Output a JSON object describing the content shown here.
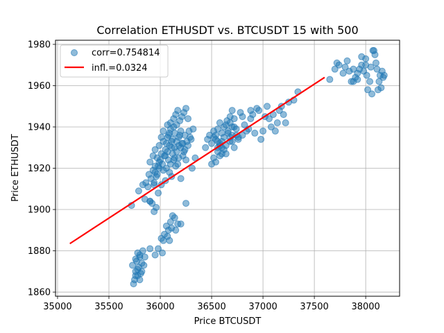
{
  "chart_data": {
    "type": "scatter",
    "title": "Correlation ETHUSDT vs. BTCUSDT 15 with 500",
    "xlabel": "Price BTCUSDT",
    "ylabel": "Price ETHUSDT",
    "xlim": [
      34980,
      38330
    ],
    "ylim": [
      1858,
      1982
    ],
    "xticks": [
      35000,
      35500,
      36000,
      36500,
      37000,
      37500,
      38000
    ],
    "yticks": [
      1860,
      1880,
      1900,
      1920,
      1940,
      1960,
      1980
    ],
    "grid": true,
    "legend_position": "top-left",
    "colors": {
      "points": "#1f77b4",
      "fit_line": "#ff0000"
    },
    "series": [
      {
        "name": "corr=0.754814",
        "kind": "scatter",
        "points": [
          [
            35720,
            1902
          ],
          [
            35790,
            1909
          ],
          [
            35830,
            1912
          ],
          [
            35850,
            1905
          ],
          [
            35880,
            1911
          ],
          [
            35900,
            1904
          ],
          [
            35920,
            1903
          ],
          [
            35940,
            1913
          ],
          [
            35960,
            1901
          ],
          [
            35980,
            1908
          ],
          [
            35860,
            1913
          ],
          [
            35890,
            1917
          ],
          [
            35910,
            1915
          ],
          [
            35930,
            1919
          ],
          [
            35950,
            1921
          ],
          [
            35970,
            1917
          ],
          [
            35990,
            1923
          ],
          [
            36010,
            1912
          ],
          [
            36030,
            1919
          ],
          [
            36050,
            1914
          ],
          [
            35900,
            1923
          ],
          [
            35930,
            1926
          ],
          [
            35950,
            1929
          ],
          [
            35970,
            1925
          ],
          [
            35990,
            1931
          ],
          [
            36010,
            1927
          ],
          [
            36030,
            1933
          ],
          [
            36050,
            1929
          ],
          [
            36070,
            1935
          ],
          [
            36090,
            1931
          ],
          [
            35950,
            1918
          ],
          [
            35980,
            1921
          ],
          [
            36000,
            1924
          ],
          [
            36020,
            1922
          ],
          [
            36040,
            1926
          ],
          [
            36060,
            1920
          ],
          [
            36080,
            1924
          ],
          [
            36100,
            1922
          ],
          [
            36120,
            1927
          ],
          [
            36140,
            1925
          ],
          [
            36060,
            1932
          ],
          [
            36080,
            1936
          ],
          [
            36100,
            1939
          ],
          [
            36120,
            1934
          ],
          [
            36140,
            1937
          ],
          [
            36160,
            1941
          ],
          [
            36180,
            1935
          ],
          [
            36200,
            1938
          ],
          [
            36220,
            1932
          ],
          [
            36240,
            1936
          ],
          [
            36100,
            1942
          ],
          [
            36130,
            1944
          ],
          [
            36150,
            1946
          ],
          [
            36170,
            1948
          ],
          [
            36190,
            1943
          ],
          [
            36210,
            1945
          ],
          [
            36230,
            1947
          ],
          [
            36250,
            1949
          ],
          [
            36270,
            1944
          ],
          [
            36160,
            1928
          ],
          [
            36180,
            1925
          ],
          [
            36200,
            1930
          ],
          [
            36220,
            1926
          ],
          [
            36240,
            1929
          ],
          [
            36260,
            1933
          ],
          [
            36280,
            1938
          ],
          [
            36300,
            1934
          ],
          [
            36320,
            1939
          ],
          [
            36340,
            1925
          ],
          [
            36200,
            1915
          ],
          [
            36140,
            1930
          ],
          [
            36160,
            1933
          ],
          [
            36180,
            1931
          ],
          [
            36050,
            1926
          ],
          [
            36070,
            1928
          ],
          [
            36110,
            1930
          ],
          [
            36130,
            1924
          ],
          [
            36150,
            1921
          ],
          [
            36010,
            1935
          ],
          [
            35990,
            1920
          ],
          [
            35960,
            1916
          ],
          [
            35940,
            1912
          ],
          [
            36030,
            1938
          ],
          [
            36070,
            1941
          ],
          [
            36090,
            1937
          ],
          [
            36110,
            1933
          ],
          [
            36130,
            1940
          ],
          [
            36190,
            1936
          ],
          [
            36210,
            1932
          ],
          [
            36230,
            1928
          ],
          [
            36250,
            1924
          ],
          [
            36270,
            1931
          ],
          [
            36290,
            1935
          ],
          [
            36310,
            1920
          ],
          [
            36090,
            1918
          ],
          [
            36110,
            1916
          ],
          [
            36170,
            1922
          ],
          [
            36250,
            1903
          ],
          [
            35900,
            1904
          ],
          [
            35940,
            1899
          ],
          [
            35730,
            1873
          ],
          [
            35750,
            1866
          ],
          [
            35760,
            1870
          ],
          [
            35770,
            1875
          ],
          [
            35780,
            1868
          ],
          [
            35790,
            1872
          ],
          [
            35800,
            1877
          ],
          [
            35810,
            1869
          ],
          [
            35820,
            1874
          ],
          [
            35830,
            1880
          ],
          [
            35740,
            1864
          ],
          [
            35760,
            1868
          ],
          [
            35780,
            1871
          ],
          [
            35800,
            1866
          ],
          [
            35820,
            1870
          ],
          [
            35840,
            1873
          ],
          [
            35850,
            1877
          ],
          [
            35760,
            1876
          ],
          [
            35780,
            1879
          ],
          [
            35800,
            1878
          ],
          [
            35900,
            1881
          ],
          [
            35950,
            1878
          ],
          [
            35980,
            1881
          ],
          [
            36010,
            1886
          ],
          [
            36040,
            1888
          ],
          [
            36060,
            1892
          ],
          [
            36080,
            1890
          ],
          [
            36100,
            1894
          ],
          [
            36120,
            1897
          ],
          [
            36140,
            1896
          ],
          [
            36170,
            1893
          ],
          [
            36030,
            1885
          ],
          [
            36070,
            1887
          ],
          [
            36090,
            1885
          ],
          [
            36110,
            1891
          ],
          [
            36150,
            1890
          ],
          [
            36200,
            1893
          ],
          [
            36020,
            1879
          ],
          [
            36440,
            1930
          ],
          [
            36460,
            1934
          ],
          [
            36480,
            1936
          ],
          [
            36500,
            1932
          ],
          [
            36520,
            1938
          ],
          [
            36540,
            1934
          ],
          [
            36560,
            1930
          ],
          [
            36580,
            1926
          ],
          [
            36600,
            1933
          ],
          [
            36620,
            1929
          ],
          [
            36500,
            1922
          ],
          [
            36520,
            1925
          ],
          [
            36540,
            1923
          ],
          [
            36560,
            1928
          ],
          [
            36580,
            1931
          ],
          [
            36600,
            1927
          ],
          [
            36620,
            1935
          ],
          [
            36640,
            1931
          ],
          [
            36660,
            1937
          ],
          [
            36680,
            1933
          ],
          [
            36540,
            1936
          ],
          [
            36560,
            1939
          ],
          [
            36580,
            1932
          ],
          [
            36600,
            1937
          ],
          [
            36640,
            1941
          ],
          [
            36660,
            1938
          ],
          [
            36680,
            1942
          ],
          [
            36700,
            1936
          ],
          [
            36720,
            1940
          ],
          [
            36740,
            1936
          ],
          [
            36620,
            1940
          ],
          [
            36650,
            1943
          ],
          [
            36680,
            1945
          ],
          [
            36700,
            1948
          ],
          [
            36720,
            1944
          ],
          [
            36740,
            1939
          ],
          [
            36760,
            1935
          ],
          [
            36780,
            1947
          ],
          [
            36800,
            1945
          ],
          [
            36820,
            1941
          ],
          [
            36840,
            1938
          ],
          [
            36880,
            1944
          ],
          [
            36900,
            1946
          ],
          [
            36920,
            1937
          ],
          [
            36940,
            1949
          ],
          [
            36960,
            1948
          ],
          [
            36980,
            1934
          ],
          [
            37000,
            1938
          ],
          [
            37020,
            1945
          ],
          [
            37040,
            1950
          ],
          [
            37060,
            1944
          ],
          [
            37080,
            1940
          ],
          [
            37100,
            1946
          ],
          [
            37120,
            1938
          ],
          [
            37140,
            1942
          ],
          [
            37160,
            1948
          ],
          [
            37180,
            1950
          ],
          [
            37200,
            1946
          ],
          [
            37220,
            1942
          ],
          [
            37250,
            1952
          ],
          [
            37300,
            1953
          ],
          [
            37340,
            1957
          ],
          [
            36520,
            1935
          ],
          [
            36560,
            1933
          ],
          [
            36600,
            1930
          ],
          [
            36640,
            1927
          ],
          [
            36680,
            1935
          ],
          [
            36700,
            1933
          ],
          [
            36720,
            1930
          ],
          [
            36760,
            1934
          ],
          [
            36800,
            1936
          ],
          [
            36860,
            1939
          ],
          [
            36880,
            1948
          ],
          [
            36580,
            1942
          ],
          [
            36700,
            1940
          ],
          [
            37650,
            1963
          ],
          [
            37700,
            1968
          ],
          [
            37720,
            1971
          ],
          [
            37740,
            1970
          ],
          [
            37780,
            1966
          ],
          [
            37800,
            1969
          ],
          [
            37820,
            1972
          ],
          [
            37840,
            1967
          ],
          [
            37860,
            1962
          ],
          [
            37880,
            1968
          ],
          [
            37900,
            1964
          ],
          [
            37920,
            1963
          ],
          [
            37940,
            1968
          ],
          [
            37960,
            1970
          ],
          [
            37980,
            1967
          ],
          [
            38000,
            1973
          ],
          [
            38010,
            1965
          ],
          [
            38020,
            1958
          ],
          [
            38040,
            1962
          ],
          [
            38060,
            1956
          ],
          [
            38070,
            1977
          ],
          [
            38090,
            1975
          ],
          [
            38100,
            1971
          ],
          [
            38110,
            1968
          ],
          [
            38120,
            1958
          ],
          [
            38130,
            1962
          ],
          [
            38140,
            1965
          ],
          [
            38150,
            1959
          ],
          [
            38160,
            1967
          ],
          [
            38170,
            1964
          ],
          [
            38180,
            1965
          ],
          [
            37880,
            1962
          ],
          [
            37920,
            1966
          ],
          [
            37960,
            1974
          ],
          [
            38000,
            1970
          ],
          [
            38080,
            1977
          ],
          [
            38050,
            1969
          ]
        ]
      },
      {
        "name": "infl.=0.0324",
        "kind": "line",
        "points": [
          [
            35120,
            1883.5
          ],
          [
            37600,
            1964
          ]
        ]
      }
    ]
  }
}
